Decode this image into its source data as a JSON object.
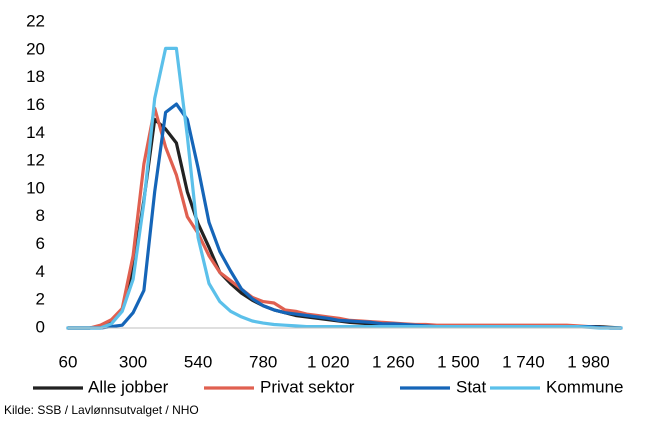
{
  "chart_data": {
    "type": "line",
    "title": "",
    "xlabel": "",
    "ylabel": "",
    "ylim": [
      0,
      22
    ],
    "yticks": [
      0,
      2,
      4,
      6,
      8,
      10,
      12,
      14,
      16,
      18,
      20,
      22
    ],
    "xlim": [
      60,
      2100
    ],
    "xtick_labels": [
      {
        "value": 60,
        "label": "60"
      },
      {
        "value": 300,
        "label": "300"
      },
      {
        "value": 540,
        "label": "540"
      },
      {
        "value": 780,
        "label": "780"
      },
      {
        "value": 1020,
        "label": "1 020"
      },
      {
        "value": 1260,
        "label": "1 260"
      },
      {
        "value": 1500,
        "label": "1 500"
      },
      {
        "value": 1740,
        "label": "1 740"
      },
      {
        "value": 1980,
        "label": "1 980"
      }
    ],
    "grid": "none",
    "legend_position": "bottom",
    "x": [
      60,
      100,
      140,
      180,
      220,
      260,
      300,
      340,
      380,
      420,
      460,
      500,
      540,
      580,
      620,
      660,
      700,
      740,
      780,
      820,
      860,
      900,
      940,
      980,
      1020,
      1060,
      1100,
      1140,
      1180,
      1220,
      1260,
      1300,
      1340,
      1380,
      1420,
      1460,
      1500,
      1540,
      1580,
      1620,
      1660,
      1700,
      1740,
      1780,
      1820,
      1860,
      1900,
      1940,
      1980,
      2020,
      2060,
      2100
    ],
    "series": [
      {
        "name": "Alle jobber",
        "color": "#222222",
        "values": [
          0,
          0,
          0,
          0.1,
          0.5,
          1.3,
          4.2,
          9.2,
          15.0,
          14.3,
          13.3,
          9.8,
          7.5,
          5.8,
          4.0,
          3.2,
          2.5,
          2.0,
          1.6,
          1.3,
          1.1,
          0.9,
          0.8,
          0.7,
          0.6,
          0.5,
          0.4,
          0.35,
          0.3,
          0.25,
          0.2,
          0.15,
          0.12,
          0.1,
          0.1,
          0.1,
          0.1,
          0.1,
          0.1,
          0.1,
          0.1,
          0.1,
          0.1,
          0.1,
          0.1,
          0.1,
          0.1,
          0.1,
          0.1,
          0.1,
          0.05,
          0
        ]
      },
      {
        "name": "Privat sektor",
        "color": "#e06050",
        "values": [
          0,
          0,
          0,
          0.2,
          0.6,
          1.4,
          5.2,
          11.8,
          15.8,
          13.0,
          11.0,
          8.0,
          6.8,
          5.2,
          4.0,
          3.4,
          2.8,
          2.2,
          1.9,
          1.8,
          1.3,
          1.2,
          1.0,
          0.9,
          0.8,
          0.7,
          0.55,
          0.5,
          0.45,
          0.4,
          0.35,
          0.3,
          0.25,
          0.25,
          0.2,
          0.2,
          0.2,
          0.2,
          0.2,
          0.2,
          0.2,
          0.2,
          0.2,
          0.2,
          0.2,
          0.2,
          0.2,
          0.15,
          0.1,
          0.05,
          0,
          0
        ]
      },
      {
        "name": "Stat",
        "color": "#1565b8",
        "values": [
          0,
          0,
          0,
          0,
          0.1,
          0.2,
          1.1,
          2.7,
          9.8,
          15.5,
          16.1,
          15.0,
          11.5,
          7.6,
          5.5,
          4.1,
          2.8,
          2.1,
          1.6,
          1.3,
          1.1,
          1.0,
          0.9,
          0.8,
          0.7,
          0.55,
          0.5,
          0.45,
          0.4,
          0.3,
          0.3,
          0.25,
          0.2,
          0.15,
          0.1,
          0.1,
          0.1,
          0.1,
          0.1,
          0.1,
          0.1,
          0.1,
          0.1,
          0.1,
          0.1,
          0.1,
          0.1,
          0.1,
          0.1,
          0.05,
          0,
          0
        ]
      },
      {
        "name": "Kommune",
        "color": "#5bc0ea",
        "values": [
          0,
          0,
          0,
          0,
          0.3,
          1.2,
          3.5,
          9.0,
          16.5,
          20.1,
          20.1,
          13.8,
          6.5,
          3.2,
          1.9,
          1.2,
          0.8,
          0.5,
          0.35,
          0.25,
          0.2,
          0.15,
          0.1,
          0.1,
          0.1,
          0.1,
          0.1,
          0.1,
          0.1,
          0.1,
          0.1,
          0.1,
          0.1,
          0.1,
          0.1,
          0.1,
          0.1,
          0.1,
          0.1,
          0.1,
          0.1,
          0.1,
          0.1,
          0.1,
          0.1,
          0.1,
          0.1,
          0.1,
          0.05,
          0,
          0,
          0
        ]
      }
    ],
    "source": "Kilde: SSB / Lavlønnsutvalget / NHO"
  }
}
